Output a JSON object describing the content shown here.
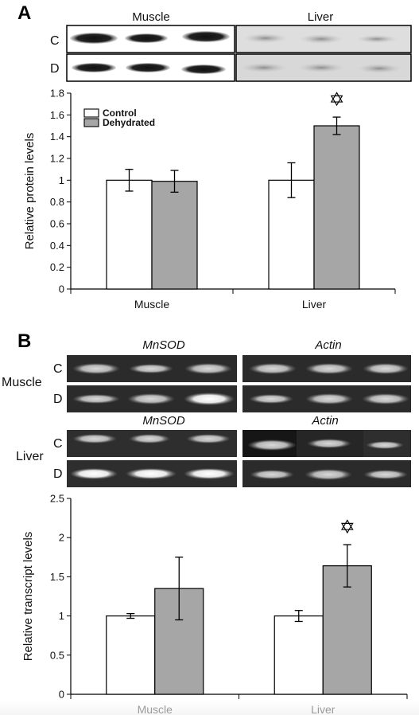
{
  "panel_a": {
    "letter": "A",
    "blot": {
      "col_labels": [
        "Muscle",
        "Liver"
      ],
      "row_labels": [
        "C",
        "D"
      ]
    }
  },
  "panel_b": {
    "letter": "B",
    "gel": {
      "col_labels": [
        "MnSOD",
        "Actin"
      ],
      "tissue_labels": [
        "Muscle",
        "Liver"
      ],
      "row_labels": [
        "C",
        "D"
      ]
    }
  },
  "colors": {
    "control": "#ffffff",
    "dehydrated": "#a6a6a6",
    "outline": "#000000"
  },
  "chart_data": [
    {
      "type": "bar",
      "title": "",
      "xlabel": "",
      "ylabel": "Relative protein levels",
      "ylim": [
        0,
        1.8
      ],
      "yticks": [
        "0",
        "0.2",
        "0.4",
        "0.6",
        "0.8",
        "1",
        "1.2",
        "1.4",
        "1.6",
        "1.8"
      ],
      "categories": [
        "Muscle",
        "Liver"
      ],
      "legend": {
        "placement": "top-left",
        "entries": [
          "Control",
          "Dehydrated"
        ]
      },
      "series": [
        {
          "name": "Control",
          "values": [
            1.0,
            1.0
          ],
          "errors": [
            0.1,
            0.16
          ]
        },
        {
          "name": "Dehydrated",
          "values": [
            0.99,
            1.5
          ],
          "errors": [
            0.1,
            0.08
          ]
        }
      ],
      "significance": [
        {
          "category": "Liver",
          "series": "Dehydrated",
          "marker": "✡"
        }
      ]
    },
    {
      "type": "bar",
      "title": "",
      "xlabel": "",
      "ylabel": "Relative transcript levels",
      "ylim": [
        0,
        2.5
      ],
      "yticks": [
        "0",
        "0.5",
        "1",
        "1.5",
        "2",
        "2.5"
      ],
      "categories": [
        "Muscle",
        "Liver"
      ],
      "series": [
        {
          "name": "Control",
          "values": [
            1.0,
            1.0
          ],
          "errors": [
            0.03,
            0.07
          ]
        },
        {
          "name": "Dehydrated",
          "values": [
            1.35,
            1.64
          ],
          "errors": [
            0.4,
            0.27
          ]
        }
      ],
      "significance": [
        {
          "category": "Liver",
          "series": "Dehydrated",
          "marker": "✡"
        }
      ]
    }
  ]
}
